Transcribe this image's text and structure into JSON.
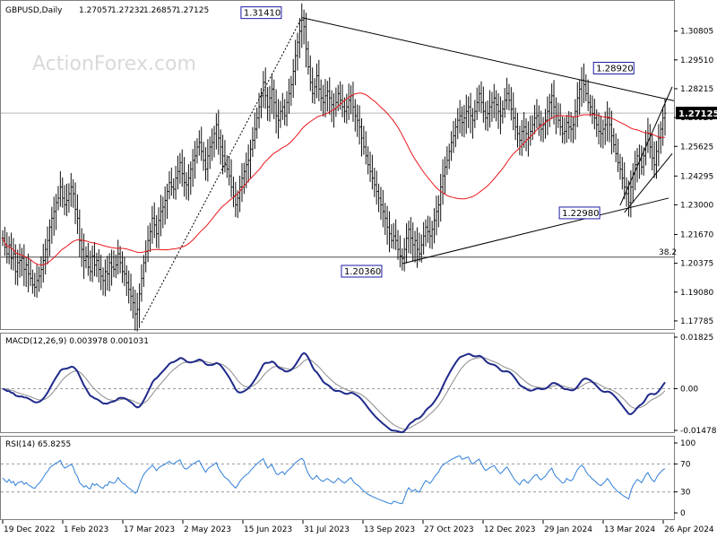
{
  "chart_data": [
    {
      "type": "candlestick",
      "title": "GBPUSD,Daily",
      "ohlc": {
        "open": "1.27057",
        "high": "1.27232",
        "low": "1.26857",
        "close": "1.27125"
      },
      "watermark": "ActionForex.com",
      "ylim": [
        1.175,
        1.32
      ],
      "y_ticks": [
        "1.30805",
        "1.29510",
        "1.28215",
        "1.26920",
        "1.25625",
        "1.24295",
        "1.23000",
        "1.21670",
        "1.20375",
        "1.19080",
        "1.17785"
      ],
      "current_price": "1.27125",
      "x_ticks": [
        "19 Dec 2022",
        "1 Feb 2023",
        "17 Mar 2023",
        "2 May 2023",
        "15 Jun 2023",
        "31 Jul 2023",
        "13 Sep 2023",
        "27 Oct 2023",
        "12 Dec 2023",
        "29 Jan 2024",
        "13 Mar 2024",
        "26 Apr 2024"
      ],
      "annotations": [
        {
          "text": "1.31410",
          "price": 1.3141
        },
        {
          "text": "1.28920",
          "price": 1.2892
        },
        {
          "text": "1.20360",
          "price": 1.2036
        },
        {
          "text": "1.22980",
          "price": 1.2298
        }
      ],
      "fib_label": "38.2",
      "fib_level": 1.2065,
      "hline_level": 1.2712,
      "close_series": [
        1.215,
        1.211,
        1.208,
        1.212,
        1.206,
        1.208,
        1.2,
        1.204,
        1.205,
        1.206,
        1.201,
        1.203,
        1.199,
        1.197,
        1.194,
        1.193,
        1.196,
        1.198,
        1.201,
        1.205,
        1.21,
        1.214,
        1.22,
        1.224,
        1.227,
        1.231,
        1.233,
        1.238,
        1.233,
        1.23,
        1.232,
        1.235,
        1.238,
        1.235,
        1.228,
        1.224,
        1.214,
        1.21,
        1.205,
        1.207,
        1.202,
        1.2,
        1.207,
        1.203,
        1.205,
        1.201,
        1.198,
        1.196,
        1.2,
        1.199,
        1.204,
        1.202,
        1.201,
        1.203,
        1.208,
        1.204,
        1.2,
        1.199,
        1.195,
        1.192,
        1.189,
        1.186,
        1.181,
        1.183,
        1.19,
        1.197,
        1.204,
        1.209,
        1.214,
        1.218,
        1.224,
        1.221,
        1.217,
        1.223,
        1.227,
        1.229,
        1.232,
        1.236,
        1.24,
        1.238,
        1.237,
        1.242,
        1.245,
        1.249,
        1.244,
        1.24,
        1.239,
        1.242,
        1.246,
        1.25,
        1.252,
        1.256,
        1.258,
        1.254,
        1.25,
        1.246,
        1.252,
        1.256,
        1.258,
        1.262,
        1.266,
        1.26,
        1.256,
        1.252,
        1.248,
        1.246,
        1.243,
        1.238,
        1.234,
        1.23,
        1.233,
        1.238,
        1.242,
        1.245,
        1.248,
        1.25,
        1.255,
        1.259,
        1.264,
        1.269,
        1.274,
        1.279,
        1.285,
        1.279,
        1.274,
        1.278,
        1.282,
        1.276,
        1.27,
        1.268,
        1.272,
        1.274,
        1.27,
        1.276,
        1.28,
        1.284,
        1.29,
        1.297,
        1.303,
        1.308,
        1.313,
        1.31,
        1.3,
        1.292,
        1.285,
        1.28,
        1.283,
        1.288,
        1.282,
        1.278,
        1.276,
        1.279,
        1.281,
        1.278,
        1.275,
        1.273,
        1.276,
        1.28,
        1.277,
        1.274,
        1.272,
        1.274,
        1.277,
        1.279,
        1.274,
        1.27,
        1.268,
        1.265,
        1.26,
        1.256,
        1.252,
        1.248,
        1.245,
        1.242,
        1.239,
        1.236,
        1.233,
        1.23,
        1.227,
        1.224,
        1.22,
        1.217,
        1.214,
        1.216,
        1.214,
        1.21,
        1.207,
        1.206,
        1.21,
        1.215,
        1.219,
        1.215,
        1.212,
        1.214,
        1.21,
        1.208,
        1.212,
        1.216,
        1.22,
        1.218,
        1.216,
        1.219,
        1.223,
        1.227,
        1.23,
        1.238,
        1.243,
        1.247,
        1.25,
        1.254,
        1.258,
        1.261,
        1.265,
        1.268,
        1.27,
        1.267,
        1.269,
        1.272,
        1.274,
        1.27,
        1.268,
        1.272,
        1.276,
        1.28,
        1.276,
        1.272,
        1.269,
        1.271,
        1.274,
        1.276,
        1.278,
        1.275,
        1.272,
        1.27,
        1.273,
        1.277,
        1.28,
        1.277,
        1.273,
        1.269,
        1.265,
        1.262,
        1.259,
        1.263,
        1.265,
        1.262,
        1.26,
        1.263,
        1.266,
        1.269,
        1.27,
        1.266,
        1.264,
        1.266,
        1.268,
        1.272,
        1.276,
        1.279,
        1.274,
        1.27,
        1.268,
        1.265,
        1.262,
        1.263,
        1.267,
        1.265,
        1.264,
        1.266,
        1.272,
        1.278,
        1.282,
        1.286,
        1.284,
        1.28,
        1.276,
        1.274,
        1.271,
        1.269,
        1.266,
        1.263,
        1.262,
        1.264,
        1.266,
        1.269,
        1.266,
        1.261,
        1.257,
        1.253,
        1.249,
        1.246,
        1.242,
        1.238,
        1.235,
        1.231,
        1.238,
        1.244,
        1.248,
        1.252,
        1.25,
        1.247,
        1.252,
        1.258,
        1.262,
        1.256,
        1.251,
        1.248,
        1.254,
        1.26,
        1.264,
        1.269,
        1.2712
      ],
      "ma_period": 50,
      "indicators": [
        {
          "name": "MACD",
          "label": "MACD(12,26,9) 0.003978 0.001031",
          "y_ticks": [
            "0.01825",
            "0.00",
            "-0.01478"
          ],
          "levels": [
            0.0
          ]
        },
        {
          "name": "RSI",
          "label": "RSI(14) 65.8255",
          "y_ticks": [
            "100",
            "70",
            "30",
            "0"
          ],
          "levels": [
            70,
            30
          ]
        }
      ]
    }
  ]
}
